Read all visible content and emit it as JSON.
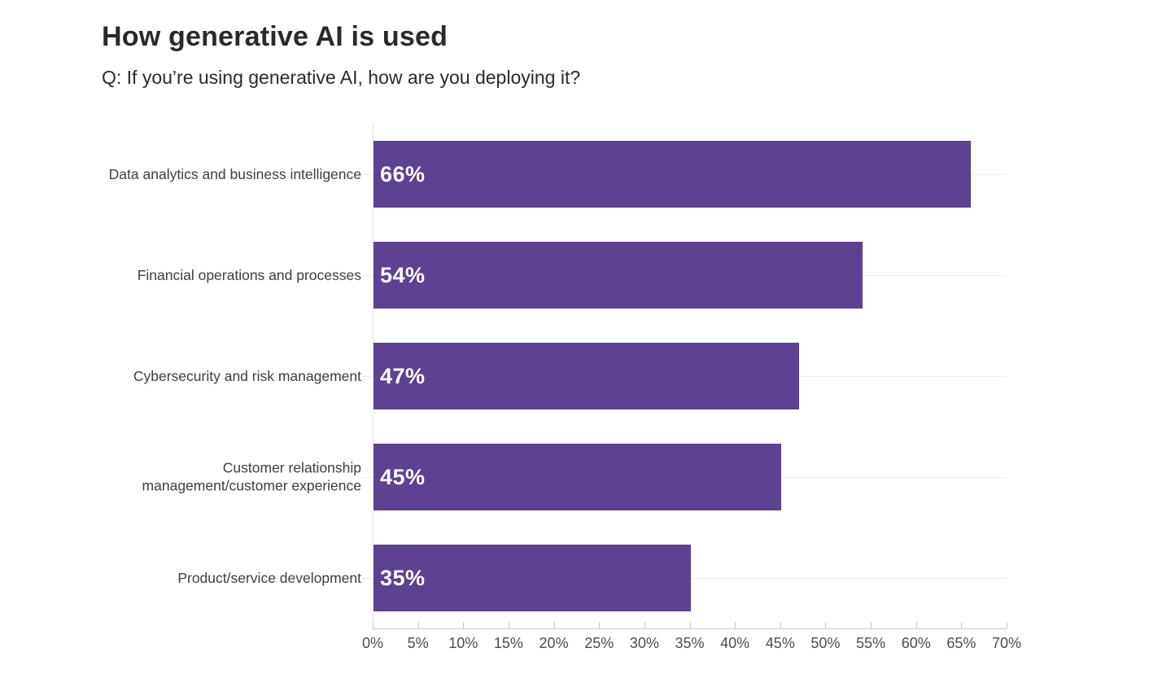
{
  "header": {
    "title": "How generative AI is used",
    "subtitle": "Q: If you’re using generative AI, how are you deploying it?"
  },
  "chart_data": {
    "type": "bar",
    "orientation": "horizontal",
    "title": "How generative AI is used",
    "subtitle": "Q: If you’re using generative AI, how are you deploying it?",
    "categories": [
      "Data analytics and business intelligence",
      "Financial operations and processes",
      "Cybersecurity and risk management",
      "Customer relationship management/customer experience",
      "Product/service development"
    ],
    "values": [
      66,
      54,
      47,
      45,
      35
    ],
    "value_labels": [
      "66%",
      "54%",
      "47%",
      "45%",
      "35%"
    ],
    "xlim": [
      0,
      70
    ],
    "x_ticks": [
      "0%",
      "5%",
      "10%",
      "15%",
      "20%",
      "25%",
      "30%",
      "35%",
      "40%",
      "45%",
      "50%",
      "55%",
      "60%",
      "65%",
      "70%"
    ],
    "xlabel": "",
    "ylabel": "",
    "grid": true,
    "legend": "none",
    "bar_color": "#5E4190",
    "value_label_color": "#ffffff",
    "gridline_color": "#eeeeee",
    "axis_color": "#c9c9c9"
  }
}
